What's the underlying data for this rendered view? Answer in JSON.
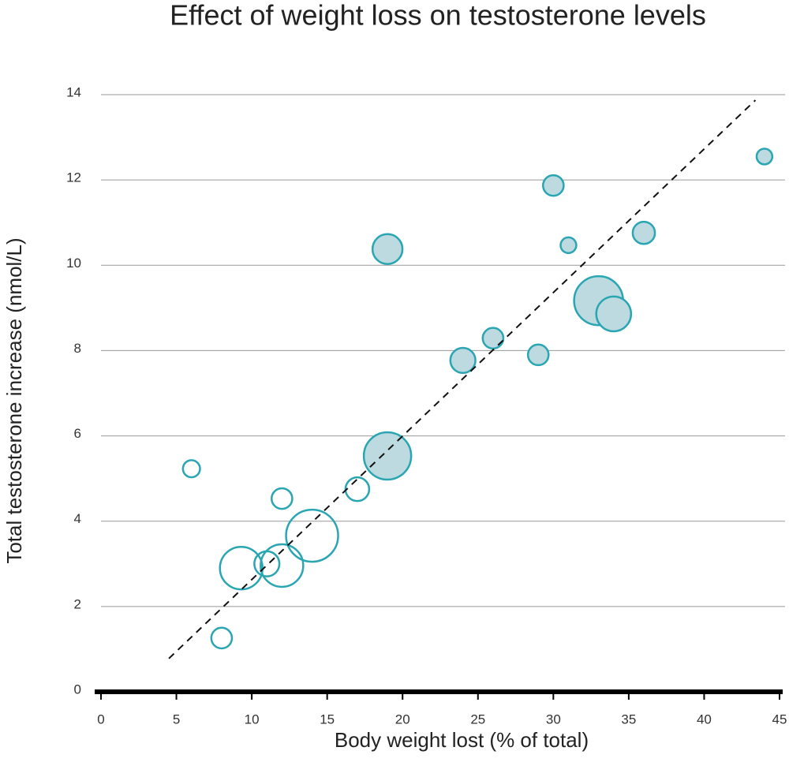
{
  "chart_data": {
    "type": "scatter",
    "title": "Effect of weight loss on testosterone levels",
    "x_label": "Body weight lost (% of total)",
    "y_label": "Total testosterone increase (nmol/L)",
    "xlim": [
      0,
      45
    ],
    "ylim": [
      0,
      14
    ],
    "xticks": [
      0,
      5,
      10,
      15,
      20,
      25,
      30,
      35,
      40,
      45
    ],
    "yticks": [
      0,
      2,
      4,
      6,
      8,
      10,
      12,
      14
    ],
    "grid": true,
    "series": [
      {
        "color": "#2aa6b3",
        "fill": "#bcdadf",
        "x": [
          44,
          30,
          31,
          36,
          19,
          33,
          34,
          26,
          24,
          29,
          19
        ],
        "values": [
          12.55,
          11.87,
          10.47,
          10.76,
          10.38,
          9.17,
          8.86,
          8.29,
          7.77,
          7.9,
          5.53
        ],
        "sizes": [
          11,
          19,
          11,
          22,
          40,
          107,
          54,
          19,
          28,
          19,
          100
        ]
      },
      {
        "color": "#2aa6b3",
        "fill": "none",
        "x": [
          6,
          12,
          17,
          14,
          9.3,
          11,
          12,
          8
        ],
        "values": [
          5.23,
          4.53,
          4.75,
          3.66,
          2.9,
          3.0,
          2.96,
          1.26
        ],
        "sizes": [
          13,
          19,
          25,
          121,
          81,
          28,
          81,
          19
        ]
      }
    ],
    "trendline": {
      "x": [
        4.5,
        43.4
      ],
      "y": [
        0.78,
        13.87
      ],
      "color": "#111"
    }
  }
}
